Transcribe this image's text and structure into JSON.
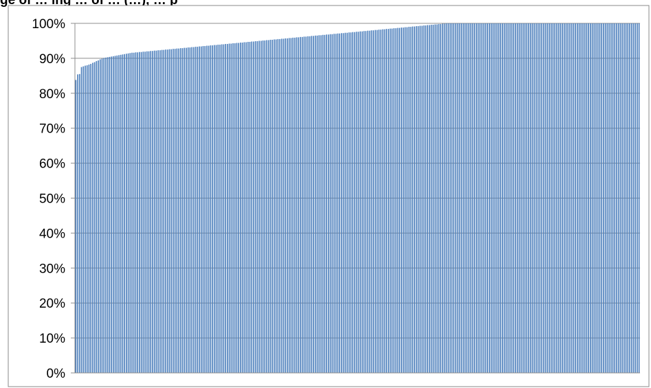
{
  "chart_data": {
    "type": "bar",
    "title": "",
    "title_fragment": "ge of … ing … of … (…), … p",
    "xlabel": "",
    "ylabel": "",
    "ylim": [
      0,
      100
    ],
    "y_ticks": [
      "0%",
      "10%",
      "20%",
      "30%",
      "40%",
      "50%",
      "60%",
      "70%",
      "80%",
      "90%",
      "100%"
    ],
    "grid": true,
    "legend": "none",
    "bar_color": "#4f81bd",
    "bar_count": 300,
    "series": [
      {
        "values": [
          83.8,
          85.4,
          85.5,
          87.5,
          87.7,
          87.9,
          88.0,
          88.2,
          88.4,
          88.7,
          88.9,
          89.2,
          89.4,
          89.7,
          89.9,
          90.1,
          90.2,
          90.3,
          90.4,
          90.5,
          90.6,
          90.7,
          90.8,
          90.9,
          91.0,
          91.1,
          91.2,
          91.3,
          91.4,
          91.5,
          91.6,
          91.6,
          91.7,
          91.7,
          91.8,
          91.8,
          91.9,
          91.9,
          92.0,
          92.0,
          92.1,
          92.1,
          92.2,
          92.2,
          92.3,
          92.3,
          92.4,
          92.4,
          92.5,
          92.5,
          92.6,
          92.6,
          92.7,
          92.7,
          92.8,
          92.8,
          92.9,
          92.9,
          93.0,
          93.0,
          93.1,
          93.1,
          93.2,
          93.2,
          93.3,
          93.3,
          93.4,
          93.4,
          93.5,
          93.5,
          93.6,
          93.6,
          93.7,
          93.7,
          93.8,
          93.8,
          93.9,
          93.9,
          94.0,
          94.0,
          94.1,
          94.1,
          94.2,
          94.2,
          94.3,
          94.3,
          94.4,
          94.4,
          94.5,
          94.5,
          94.6,
          94.6,
          94.7,
          94.7,
          94.8,
          94.8,
          94.9,
          94.9,
          95.0,
          95.0,
          95.1,
          95.1,
          95.2,
          95.2,
          95.3,
          95.3,
          95.4,
          95.4,
          95.5,
          95.5,
          95.6,
          95.6,
          95.7,
          95.7,
          95.8,
          95.8,
          95.9,
          95.9,
          96.0,
          96.0,
          96.1,
          96.1,
          96.2,
          96.2,
          96.3,
          96.3,
          96.4,
          96.4,
          96.5,
          96.5,
          96.6,
          96.6,
          96.7,
          96.7,
          96.8,
          96.8,
          96.9,
          96.9,
          97.0,
          97.0,
          97.1,
          97.1,
          97.2,
          97.2,
          97.3,
          97.3,
          97.4,
          97.4,
          97.5,
          97.5,
          97.6,
          97.6,
          97.7,
          97.7,
          97.8,
          97.8,
          97.9,
          97.9,
          98.0,
          98.0,
          98.1,
          98.1,
          98.2,
          98.2,
          98.3,
          98.3,
          98.4,
          98.4,
          98.5,
          98.5,
          98.6,
          98.6,
          98.7,
          98.7,
          98.8,
          98.8,
          98.9,
          98.9,
          99.0,
          99.0,
          99.1,
          99.1,
          99.2,
          99.2,
          99.3,
          99.3,
          99.4,
          99.4,
          99.5,
          99.5,
          99.6,
          99.6,
          99.7,
          99.7,
          99.8,
          99.8,
          99.9,
          99.9,
          100.0,
          100.0,
          100.0,
          100.0,
          100.0,
          100.0,
          100.0,
          100.0,
          100.0,
          100.0,
          100.0,
          100.0,
          100.0,
          100.0,
          100.0,
          100.0,
          100.0,
          100.0,
          100.0,
          100.0,
          100.0,
          100.0,
          100.0,
          100.0,
          100.0,
          100.0,
          100.0,
          100.0,
          100.0,
          100.0,
          100.0,
          100.0,
          100.0,
          100.0,
          100.0,
          100.0,
          100.0,
          100.0,
          100.0,
          100.0,
          100.0,
          100.0,
          100.0,
          100.0,
          100.0,
          100.0,
          100.0,
          100.0,
          100.0,
          100.0,
          100.0,
          100.0,
          100.0,
          100.0,
          100.0,
          100.0,
          100.0,
          100.0,
          100.0,
          100.0,
          100.0,
          100.0,
          100.0,
          100.0,
          100.0,
          100.0,
          100.0,
          100.0,
          100.0,
          100.0,
          100.0,
          100.0,
          100.0,
          100.0,
          100.0,
          100.0,
          100.0,
          100.0,
          100.0,
          100.0,
          100.0,
          100.0,
          100.0,
          100.0,
          100.0,
          100.0,
          100.0,
          100.0,
          100.0,
          100.0,
          100.0,
          100.0,
          100.0,
          100.0,
          100.0,
          100.0,
          100.0,
          100.0,
          100.0,
          100.0,
          100.0,
          100.0,
          100.0,
          100.0
        ]
      }
    ]
  }
}
